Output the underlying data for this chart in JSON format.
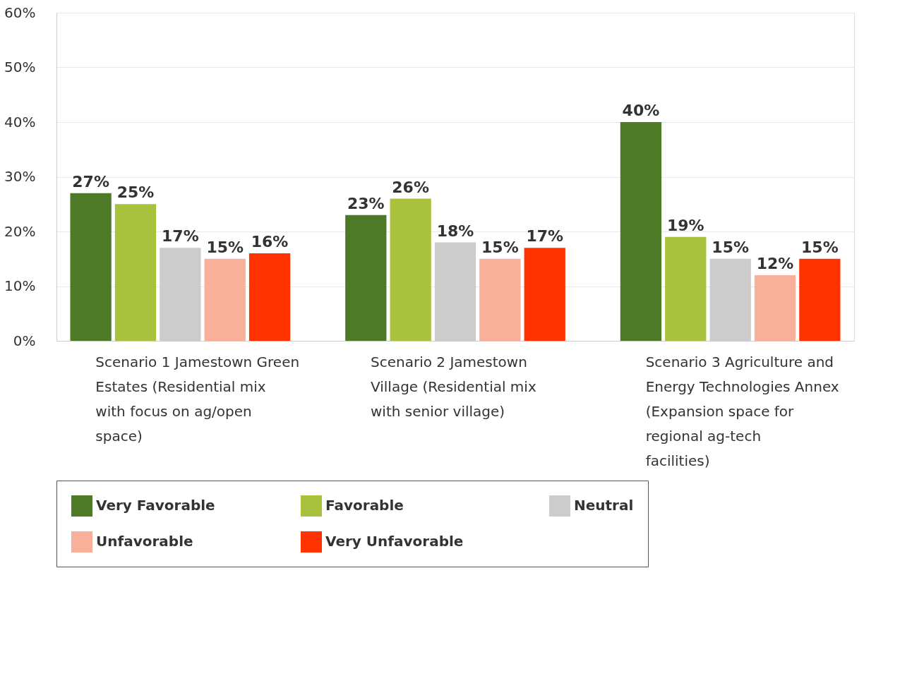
{
  "chart_data": {
    "type": "bar",
    "categories": [
      "Scenario 1 Jamestown Green Estates (Residential mix with focus on ag/open space)",
      "Scenario 2 Jamestown Village (Residential mix with senior village)",
      "Scenario 3 Agriculture and Energy Technologies Annex (Expansion space for regional ag-tech facilities)"
    ],
    "series": [
      {
        "name": "Very Favorable",
        "color": "#4e7a27",
        "values": [
          27,
          23,
          40
        ],
        "value_labels": [
          "27%",
          "23%",
          "40%"
        ]
      },
      {
        "name": "Favorable",
        "color": "#a8c23e",
        "values": [
          25,
          26,
          19
        ],
        "value_labels": [
          "25%",
          "26%",
          "19%"
        ]
      },
      {
        "name": "Neutral",
        "color": "#cccccc",
        "values": [
          17,
          18,
          15
        ],
        "value_labels": [
          "17%",
          "18%",
          "15%"
        ]
      },
      {
        "name": "Unfavorable",
        "color": "#f8b09a",
        "values": [
          15,
          15,
          12
        ],
        "value_labels": [
          "15%",
          "15%",
          "12%"
        ]
      },
      {
        "name": "Very Unfavorable",
        "color": "#ff3300",
        "values": [
          16,
          17,
          15
        ],
        "value_labels": [
          "16%",
          "17%",
          "15%"
        ]
      }
    ],
    "ylim": [
      0,
      60
    ],
    "yticks": [
      {
        "value": 0,
        "label": "0%"
      },
      {
        "value": 10,
        "label": "10%"
      },
      {
        "value": 20,
        "label": "20%"
      },
      {
        "value": 30,
        "label": "30%"
      },
      {
        "value": 40,
        "label": "40%"
      },
      {
        "value": 50,
        "label": "50%"
      },
      {
        "value": 60,
        "label": "60%"
      }
    ],
    "grid": "y",
    "legend": "bottom"
  }
}
